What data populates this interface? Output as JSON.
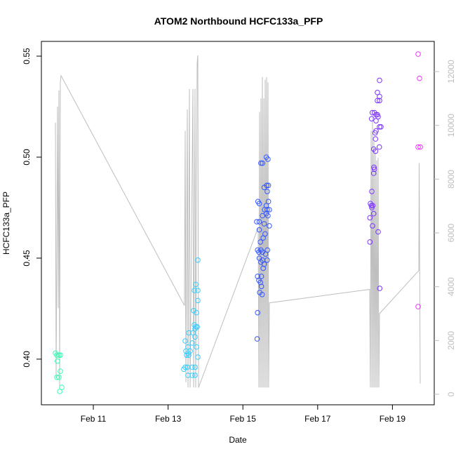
{
  "chart_data": {
    "type": "scatter",
    "title": "ATOM2 Northbound HCFC133a_PFP",
    "xlabel": "Date",
    "ylabel": "HCFC133a_PFP",
    "xlim": [
      "Feb 9 14:40",
      "Feb 20 02:50"
    ],
    "ylim": [
      0.3774,
      0.5573
    ],
    "y2lim": [
      -391,
      13123
    ],
    "grid": false,
    "x_ticks": [
      {
        "label": "Feb 11",
        "value": "Feb 11 00:00"
      },
      {
        "label": "Feb 13",
        "value": "Feb 13 00:00"
      },
      {
        "label": "Feb 15",
        "value": "Feb 15 00:00"
      },
      {
        "label": "Feb 17",
        "value": "Feb 17 00:00"
      },
      {
        "label": "Feb 19",
        "value": "Feb 19 00:00"
      }
    ],
    "y_ticks": [
      {
        "label": "0.40",
        "value": 0.4
      },
      {
        "label": "0.45",
        "value": 0.45
      },
      {
        "label": "0.50",
        "value": 0.5
      },
      {
        "label": "0.55",
        "value": 0.55
      }
    ],
    "y2_ticks": [
      {
        "label": "0",
        "value": 0
      },
      {
        "label": "2000",
        "value": 2000
      },
      {
        "label": "4000",
        "value": 4000
      },
      {
        "label": "6000",
        "value": 6000
      },
      {
        "label": "8000",
        "value": 8000
      },
      {
        "label": "10000",
        "value": 10000
      },
      {
        "label": "12000",
        "value": 12000
      }
    ],
    "secondary_line_color": "#BEBEBE",
    "secondary_line": [
      [
        "Feb 9 23:41",
        10100
      ],
      [
        "Feb 10 00:08",
        600
      ],
      [
        "Feb 10 01:02",
        10700
      ],
      [
        "Feb 10 01:29",
        3200
      ],
      [
        "Feb 10 01:56",
        11300
      ],
      [
        "Feb 10 02:23",
        250
      ],
      [
        "Feb 10 02:50",
        11600
      ],
      [
        "Feb 10 03:17",
        11850
      ],
      [
        "Feb 13 10:30",
        3300
      ],
      [
        "Feb 13 10:59",
        9800
      ],
      [
        "Feb 13 11:26",
        450
      ],
      [
        "Feb 13 12:20",
        10600
      ],
      [
        "Feb 13 12:47",
        250
      ],
      [
        "Feb 13 13:41",
        11350
      ],
      [
        "Feb 13 14:08",
        250
      ],
      [
        "Feb 13 15:56",
        11350
      ],
      [
        "Feb 13 16:23",
        250
      ],
      [
        "Feb 13 17:17",
        11350
      ],
      [
        "Feb 13 17:44",
        250
      ],
      [
        "Feb 13 18:38",
        12300
      ],
      [
        "Feb 13 19:05",
        12600
      ],
      [
        "Feb 13 19:32",
        250
      ],
      [
        "Feb 15 09:48",
        6200
      ],
      [
        "Feb 15 10:15",
        250
      ],
      [
        "Feb 15 10:42",
        10500
      ],
      [
        "Feb 15 11:09",
        250
      ],
      [
        "Feb 15 11:36",
        11000
      ],
      [
        "Feb 15 12:03",
        250
      ],
      [
        "Feb 15 12:30",
        11800
      ],
      [
        "Feb 15 12:57",
        250
      ],
      [
        "Feb 15 13:24",
        11000
      ],
      [
        "Feb 15 13:51",
        250
      ],
      [
        "Feb 15 14:18",
        11700
      ],
      [
        "Feb 15 14:45",
        250
      ],
      [
        "Feb 15 15:12",
        11800
      ],
      [
        "Feb 15 15:39",
        250
      ],
      [
        "Feb 15 16:06",
        11600
      ],
      [
        "Feb 15 16:30",
        250
      ],
      [
        "Feb 15 17:00",
        3400
      ],
      [
        "Feb 18 09:24",
        3900
      ],
      [
        "Feb 18 09:50",
        250
      ],
      [
        "Feb 18 10:18",
        9800
      ],
      [
        "Feb 18 10:45",
        250
      ],
      [
        "Feb 18 11:12",
        10300
      ],
      [
        "Feb 18 11:40",
        250
      ],
      [
        "Feb 18 12:06",
        9400
      ],
      [
        "Feb 18 12:33",
        250
      ],
      [
        "Feb 18 13:00",
        9000
      ],
      [
        "Feb 18 13:27",
        250
      ],
      [
        "Feb 18 13:54",
        8700
      ],
      [
        "Feb 18 14:21",
        250
      ],
      [
        "Feb 18 14:48",
        8800
      ],
      [
        "Feb 18 15:15",
        250
      ],
      [
        "Feb 18 15:42",
        3000
      ],
      [
        "Feb 19 16:56",
        4600
      ],
      [
        "Feb 19 17:10",
        8600
      ],
      [
        "Feb 19 17:50",
        400
      ]
    ],
    "series": [
      {
        "color": "#33FFB3",
        "points": [
          [
            "Feb 9 23:41",
            0.403
          ],
          [
            "Feb 10 00:35",
            0.402
          ],
          [
            "Feb 10 01:55",
            0.402
          ],
          [
            "Feb 10 02:50",
            0.402
          ],
          [
            "Feb 10 01:00",
            0.399
          ],
          [
            "Feb 10 02:50",
            0.394
          ],
          [
            "Feb 10 00:35",
            0.391
          ],
          [
            "Feb 10 01:55",
            0.391
          ],
          [
            "Feb 10 03:45",
            0.386
          ],
          [
            "Feb 10 02:25",
            0.384
          ]
        ]
      },
      {
        "color": "#33CCFF",
        "points": [
          [
            "Feb 13 19:05",
            0.449
          ],
          [
            "Feb 13 17:44",
            0.437
          ],
          [
            "Feb 13 16:50",
            0.434
          ],
          [
            "Feb 13 19:05",
            0.434
          ],
          [
            "Feb 13 19:05",
            0.429
          ],
          [
            "Feb 13 16:23",
            0.424
          ],
          [
            "Feb 13 18:11",
            0.423
          ],
          [
            "Feb 13 16:50",
            0.417
          ],
          [
            "Feb 13 17:44",
            0.416
          ],
          [
            "Feb 13 18:38",
            0.416
          ],
          [
            "Feb 13 17:17",
            0.415
          ],
          [
            "Feb 13 13:14",
            0.413
          ],
          [
            "Feb 13 15:56",
            0.413
          ],
          [
            "Feb 13 17:17",
            0.411
          ],
          [
            "Feb 13 10:59",
            0.409
          ],
          [
            "Feb 13 12:47",
            0.406
          ],
          [
            "Feb 13 15:29",
            0.408
          ],
          [
            "Feb 13 18:11",
            0.406
          ],
          [
            "Feb 13 11:26",
            0.404
          ],
          [
            "Feb 13 12:47",
            0.403
          ],
          [
            "Feb 13 14:08",
            0.404
          ],
          [
            "Feb 13 11:53",
            0.402
          ],
          [
            "Feb 13 13:14",
            0.402
          ],
          [
            "Feb 13 19:05",
            0.401
          ],
          [
            "Feb 13 10:59",
            0.396
          ],
          [
            "Feb 13 12:20",
            0.396
          ],
          [
            "Feb 13 15:29",
            0.396
          ],
          [
            "Feb 13 17:17",
            0.396
          ],
          [
            "Feb 13 10:05",
            0.395
          ],
          [
            "Feb 13 12:47",
            0.392
          ],
          [
            "Feb 13 15:29",
            0.392
          ],
          [
            "Feb 13 17:17",
            0.392
          ]
        ]
      },
      {
        "color": "#3355FF",
        "points": [
          [
            "Feb 15 15:03",
            0.5
          ],
          [
            "Feb 15 16:05",
            0.499
          ],
          [
            "Feb 15 11:35",
            0.497
          ],
          [
            "Feb 15 12:37",
            0.497
          ],
          [
            "Feb 15 13:42",
            0.485
          ],
          [
            "Feb 15 15:19",
            0.486
          ],
          [
            "Feb 15 16:24",
            0.486
          ],
          [
            "Feb 15 15:38",
            0.483
          ],
          [
            "Feb 15 09:40",
            0.478
          ],
          [
            "Feb 15 10:33",
            0.477
          ],
          [
            "Feb 15 16:24",
            0.478
          ],
          [
            "Feb 15 15:03",
            0.476
          ],
          [
            "Feb 15 13:58",
            0.474
          ],
          [
            "Feb 15 15:38",
            0.474
          ],
          [
            "Feb 15 16:59",
            0.474
          ],
          [
            "Feb 15 15:03",
            0.472
          ],
          [
            "Feb 15 12:37",
            0.471
          ],
          [
            "Feb 15 16:05",
            0.471
          ],
          [
            "Feb 15 08:54",
            0.468
          ],
          [
            "Feb 15 10:33",
            0.468
          ],
          [
            "Feb 15 13:42",
            0.467
          ],
          [
            "Feb 15 16:59",
            0.466
          ],
          [
            "Feb 15 10:33",
            0.464
          ],
          [
            "Feb 15 14:17",
            0.462
          ],
          [
            "Feb 15 13:04",
            0.46
          ],
          [
            "Feb 15 11:16",
            0.458
          ],
          [
            "Feb 15 09:28",
            0.454
          ],
          [
            "Feb 15 11:35",
            0.454
          ],
          [
            "Feb 15 15:46",
            0.454
          ],
          [
            "Feb 15 10:15",
            0.453
          ],
          [
            "Feb 15 12:37",
            0.453
          ],
          [
            "Feb 15 14:36",
            0.452
          ],
          [
            "Feb 15 10:33",
            0.45
          ],
          [
            "Feb 15 12:37",
            0.449
          ],
          [
            "Feb 15 15:38",
            0.449
          ],
          [
            "Feb 15 11:35",
            0.448
          ],
          [
            "Feb 15 13:42",
            0.447
          ],
          [
            "Feb 15 13:04",
            0.445
          ],
          [
            "Feb 15 09:28",
            0.441
          ],
          [
            "Feb 15 11:54",
            0.441
          ],
          [
            "Feb 15 10:15",
            0.439
          ],
          [
            "Feb 15 11:16",
            0.438
          ],
          [
            "Feb 15 11:54",
            0.436
          ],
          [
            "Feb 15 10:49",
            0.433
          ],
          [
            "Feb 15 12:21",
            0.432
          ],
          [
            "Feb 15 09:28",
            0.423
          ],
          [
            "Feb 15 09:12",
            0.41
          ]
        ]
      },
      {
        "color": "#7A33FF",
        "points": [
          [
            "Feb 18 15:43",
            0.538
          ],
          [
            "Feb 18 14:22",
            0.532
          ],
          [
            "Feb 18 15:43",
            0.53
          ],
          [
            "Feb 18 14:22",
            0.528
          ],
          [
            "Feb 18 15:43",
            0.528
          ],
          [
            "Feb 18 11:05",
            0.522
          ],
          [
            "Feb 18 12:26",
            0.522
          ],
          [
            "Feb 18 13:28",
            0.521
          ],
          [
            "Feb 18 14:22",
            0.521
          ],
          [
            "Feb 18 14:49",
            0.52
          ],
          [
            "Feb 18 10:38",
            0.519
          ],
          [
            "Feb 18 13:28",
            0.518
          ],
          [
            "Feb 18 15:43",
            0.515
          ],
          [
            "Feb 18 16:37",
            0.515
          ],
          [
            "Feb 18 13:28",
            0.513
          ],
          [
            "Feb 18 12:53",
            0.512
          ],
          [
            "Feb 18 13:09",
            0.509
          ],
          [
            "Feb 18 11:59",
            0.504
          ],
          [
            "Feb 18 13:09",
            0.503
          ],
          [
            "Feb 18 15:35",
            0.505
          ],
          [
            "Feb 18 12:07",
            0.495
          ],
          [
            "Feb 18 12:26",
            0.494
          ],
          [
            "Feb 18 11:59",
            0.492
          ],
          [
            "Feb 18 10:46",
            0.483
          ],
          [
            "Feb 18 09:52",
            0.477
          ],
          [
            "Feb 18 10:27",
            0.476
          ],
          [
            "Feb 18 11:21",
            0.476
          ],
          [
            "Feb 18 10:46",
            0.475
          ],
          [
            "Feb 18 11:59",
            0.472
          ],
          [
            "Feb 18 09:33",
            0.47
          ],
          [
            "Feb 18 11:13",
            0.466
          ],
          [
            "Feb 18 14:49",
            0.463
          ],
          [
            "Feb 18 09:33",
            0.458
          ],
          [
            "Feb 18 15:51",
            0.435
          ]
        ]
      },
      {
        "color": "#EE33FF",
        "points": [
          [
            "Feb 19 16:29",
            0.551
          ],
          [
            "Feb 19 17:23",
            0.539
          ],
          [
            "Feb 19 16:29",
            0.505
          ],
          [
            "Feb 19 17:50",
            0.505
          ],
          [
            "Feb 19 16:29",
            0.426
          ]
        ]
      }
    ]
  }
}
